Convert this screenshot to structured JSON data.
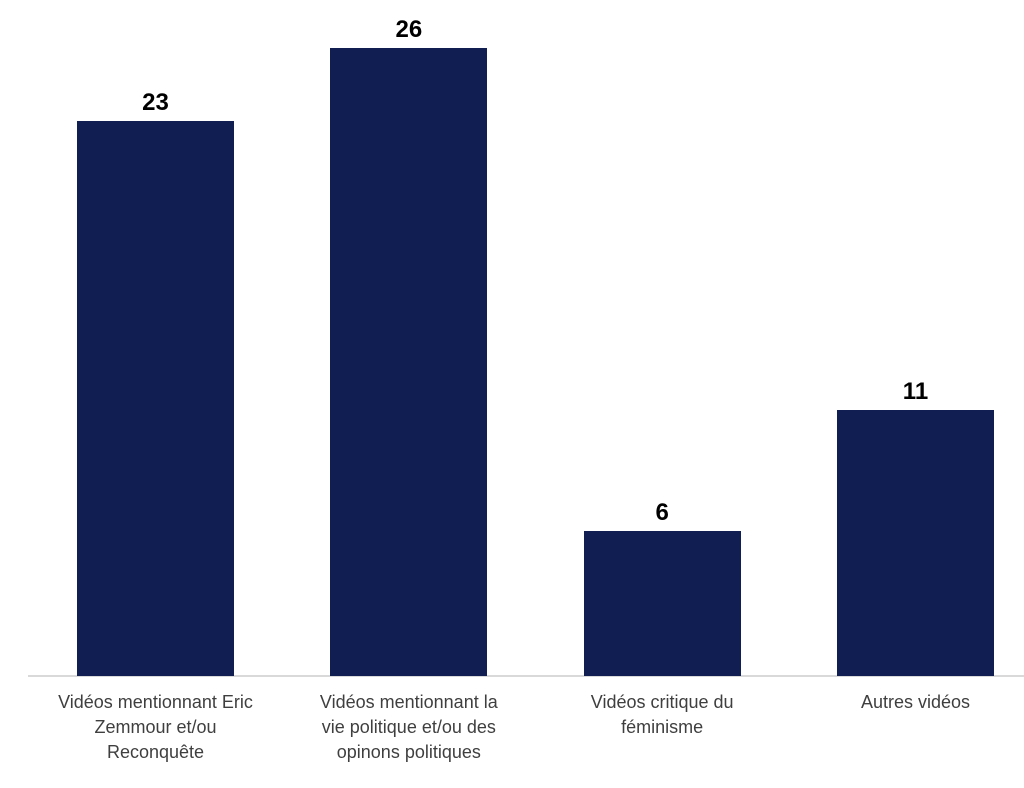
{
  "chart_data": {
    "type": "bar",
    "categories": [
      "Vidéos mentionnant Eric Zemmour et/ou Reconquête",
      "Vidéos mentionnant la vie politique et/ou des opinons politiques",
      "Vidéos critique du féminisme",
      "Autres vidéos"
    ],
    "categories_wrapped": [
      "Vidéos mentionnant Eric\nZemmour et/ou\nReconquête",
      "Vidéos mentionnant la\nvie politique et/ou des\nopinons politiques",
      "Vidéos critique du\nféminisme",
      "Autres vidéos"
    ],
    "values": [
      23,
      26,
      6,
      11
    ],
    "title": "",
    "xlabel": "",
    "ylabel": "",
    "ylim": [
      0,
      28
    ],
    "grid": false,
    "legend": false,
    "value_labels_shown": true,
    "colors": {
      "bar": "#101E52",
      "axis_line": "#D9D9D9",
      "value_label": "#000000",
      "category_label": "#3F3F3F",
      "background": "#FFFFFF"
    }
  }
}
